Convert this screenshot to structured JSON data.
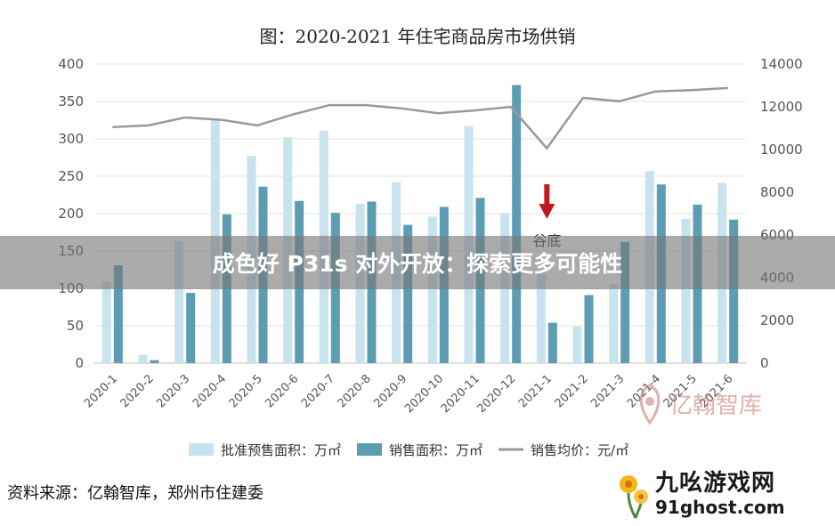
{
  "banner": {
    "text": "成色好 P31s 对外开放：探索更多可能性"
  },
  "source": {
    "text": "资料来源：亿翰智库，郑州市住建委"
  },
  "watermark": {
    "text": "亿翰智库",
    "icon": "yihan-logo-icon"
  },
  "logo": {
    "title": "九吆游戏网",
    "subtitle": "91ghost.com",
    "icon": "flower-logo-icon"
  },
  "chart_data": {
    "type": "bar",
    "title": "图：2020-2021 年住宅商品房市场供销",
    "categories": [
      "2020-1",
      "2020-2",
      "2020-3",
      "2020-4",
      "2020-5",
      "2020-6",
      "2020-7",
      "2020-8",
      "2020-9",
      "2020-10",
      "2020-11",
      "2020-12",
      "2021-1",
      "2021-2",
      "2021-3",
      "2021-4",
      "2021-5",
      "2021-6"
    ],
    "series": [
      {
        "name": "批准预售面积：万㎡",
        "kind": "bar",
        "axis": "left",
        "color": "#c7e3ee",
        "values": [
          109,
          11,
          163,
          327,
          277,
          302,
          311,
          213,
          242,
          196,
          317,
          200,
          120,
          49,
          106,
          257,
          193,
          241
        ]
      },
      {
        "name": "销售面积：万㎡",
        "kind": "bar",
        "axis": "left",
        "color": "#5d9db4",
        "values": [
          131,
          4,
          94,
          199,
          236,
          217,
          201,
          216,
          185,
          209,
          221,
          372,
          54,
          91,
          162,
          239,
          212,
          192
        ]
      },
      {
        "name": "销售均价：元/㎡",
        "kind": "line",
        "axis": "right",
        "color": "#999999",
        "values": [
          11050,
          11130,
          11500,
          11390,
          11130,
          11650,
          12080,
          12080,
          11920,
          11700,
          11830,
          12000,
          10060,
          12420,
          12260,
          12720,
          12780,
          12880
        ]
      }
    ],
    "yleft": {
      "min": 0,
      "max": 400,
      "ticks": [
        0,
        50,
        100,
        150,
        200,
        250,
        300,
        350,
        400
      ]
    },
    "yright": {
      "min": 0,
      "max": 14000,
      "ticks": [
        0,
        2000,
        4000,
        6000,
        8000,
        10000,
        12000,
        14000
      ]
    },
    "grid": true,
    "legend_position": "bottom",
    "annotation": {
      "text": "谷底",
      "category": "2021-1",
      "arrow_color": "#c0191d"
    }
  }
}
